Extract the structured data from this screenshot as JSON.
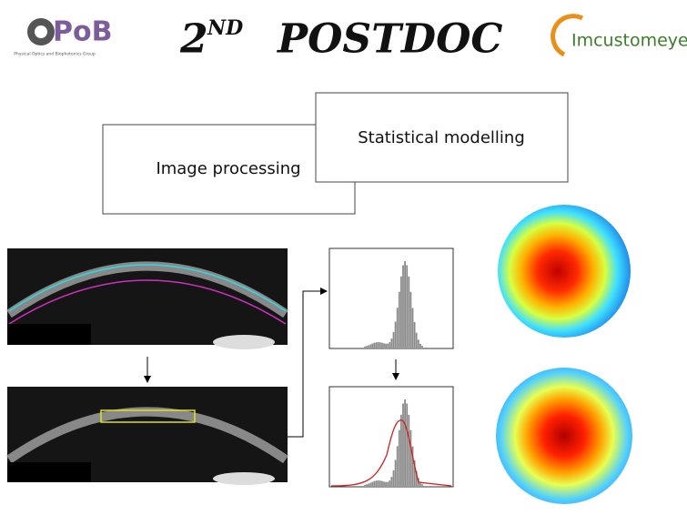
{
  "header": {
    "title_number": "2",
    "title_suffix": "ND",
    "title_word": "POSTDOC",
    "logo_left": "PoB",
    "logo_left_caption": "Physical Optics and Biophotonics Group",
    "logo_right": "Imcustomeye"
  },
  "boxes": [
    {
      "label": "Image processing"
    },
    {
      "label": "Statistical modelling"
    }
  ]
}
